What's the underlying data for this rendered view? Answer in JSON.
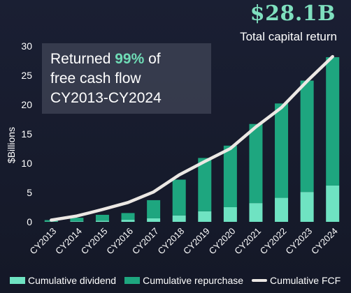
{
  "headline": {
    "value": "$28.1B",
    "caption": "Total capital return"
  },
  "callout": {
    "line1_prefix": "Returned ",
    "line1_highlight": "99%",
    "line1_suffix": " of",
    "line2": "free cash flow",
    "line3": "CY2013-CY2024"
  },
  "colors": {
    "dividend": "#6fe3c2",
    "repurchase": "#1ea67f",
    "fcf": "#ece8e4",
    "highlight": "#6fdcb6"
  },
  "chart_data": {
    "type": "bar",
    "stacked": true,
    "categories": [
      "CY2013",
      "CY2014",
      "CY2015",
      "CY2016",
      "CY2017",
      "CY2018",
      "CY2019",
      "CY2020",
      "CY2021",
      "CY2022",
      "CY2023",
      "CY2024"
    ],
    "series": [
      {
        "name": "Cumulative dividend",
        "kind": "bar",
        "values": [
          0.05,
          0.1,
          0.2,
          0.35,
          0.6,
          1.1,
          1.8,
          2.5,
          3.2,
          4.1,
          5.1,
          6.2
        ]
      },
      {
        "name": "Cumulative repurchase",
        "kind": "bar",
        "values": [
          0.25,
          0.6,
          1.0,
          1.15,
          3.1,
          6.1,
          9.1,
          10.5,
          13.5,
          16.1,
          19.0,
          21.9
        ]
      },
      {
        "name": "Cumulative FCF",
        "kind": "line",
        "values": [
          0.3,
          1.0,
          2.1,
          3.3,
          5.1,
          8.0,
          10.3,
          12.5,
          16.2,
          19.5,
          24.0,
          28.2
        ]
      }
    ],
    "ylabel": "$Billions",
    "ylim": [
      0,
      30
    ],
    "yticks": [
      0,
      5,
      10,
      15,
      20,
      25,
      30
    ],
    "grid": false,
    "legend": "bottom"
  }
}
